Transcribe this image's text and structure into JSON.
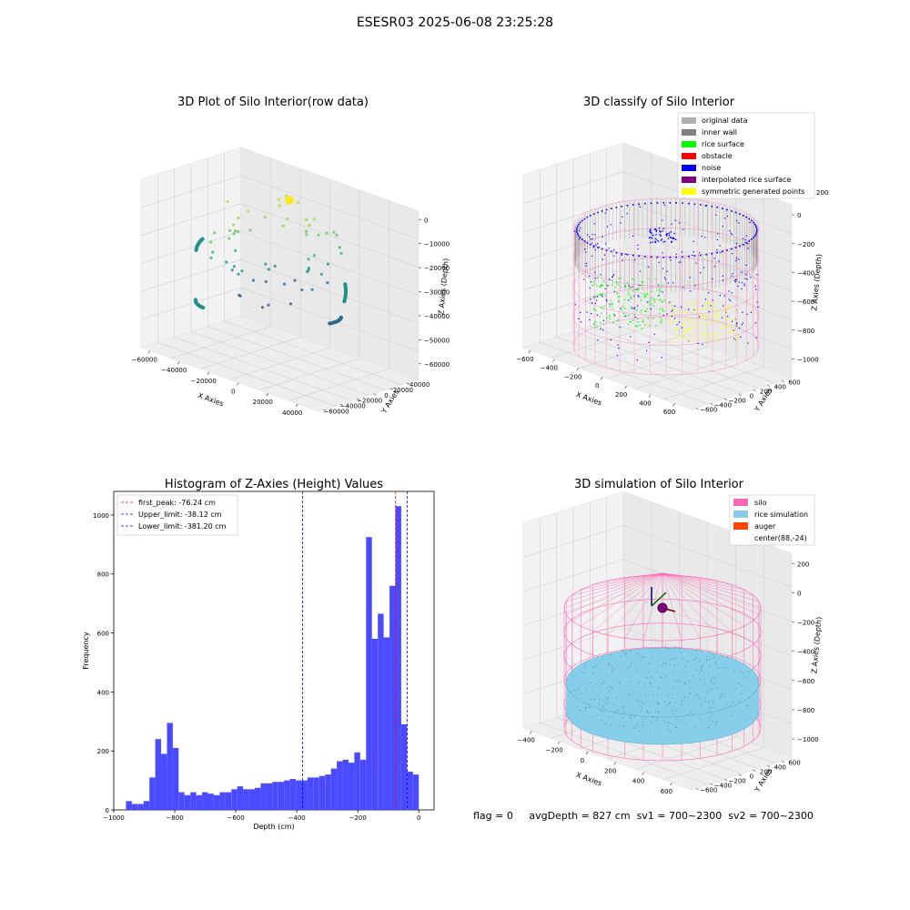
{
  "figure": {
    "title": "ESESR03 2025-06-08 23:25:28",
    "footer": {
      "flag": "flag = 0",
      "avg_depth": "avgDepth = 827 cm",
      "sv1": "sv1 = 700~2300",
      "sv2": "sv2 = 700~2300"
    }
  },
  "colors": {
    "original": "#b0b0b0",
    "inner_wall": "#808080",
    "rice_surface": "#00ff00",
    "obstacle": "#ff0000",
    "noise": "#0000ff",
    "interpolated": "#800080",
    "symmetric": "#ffff00",
    "silo": "#ff69b4",
    "rice_sim": "#87ceeb",
    "auger": "#ff4500",
    "hist_bar": "#4a4aff"
  },
  "chart_data": [
    {
      "type": "scatter",
      "title": "3D Plot of Silo Interior(row data)",
      "xlabel": "X Axies",
      "ylabel": "Y Axies",
      "zlabel": "Z Axies (Depth)",
      "x_ticks": [
        "−60000",
        "−40000",
        "−20000",
        "0",
        "20000",
        "40000"
      ],
      "y_ticks": [
        "−60000",
        "−40000",
        "−20000",
        "0",
        "20000",
        "40000"
      ],
      "z_ticks": [
        "0",
        "−10000",
        "−20000",
        "−30000",
        "−40000",
        "−50000",
        "−60000"
      ]
    },
    {
      "type": "scatter",
      "title": "3D classify of Silo Interior",
      "xlabel": "X Axies",
      "ylabel": "Y Axies",
      "zlabel": "Z Axies (Depth)",
      "x_ticks": [
        "−600",
        "−400",
        "−200",
        "0",
        "200",
        "400",
        "600"
      ],
      "y_ticks": [
        "−600",
        "−400",
        "−200",
        "0",
        "200",
        "400",
        "600"
      ],
      "z_ticks": [
        "0",
        "−200",
        "−400",
        "−600",
        "−800",
        "−1000"
      ],
      "legend": [
        "original data",
        "inner wall",
        "rice surface",
        "obstacle",
        "noise",
        "interpolated rice surface",
        "symmetric generated points"
      ],
      "legend_extra_tick": "200",
      "legend_position": "upper right"
    },
    {
      "type": "bar",
      "title": "Histogram of Z-Axies (Height) Values",
      "xlabel": "Depth (cm)",
      "ylabel": "Frequency",
      "xlim": [
        -1000,
        50
      ],
      "ylim": [
        0,
        1080
      ],
      "x_ticks": [
        "−1000",
        "−800",
        "−600",
        "−400",
        "−200",
        "0"
      ],
      "y_ticks": [
        "0",
        "200",
        "400",
        "600",
        "800",
        "1000"
      ],
      "bin_start": -960,
      "bin_width": 19.2,
      "values": [
        30,
        20,
        20,
        30,
        110,
        240,
        190,
        295,
        210,
        60,
        50,
        60,
        50,
        60,
        55,
        50,
        60,
        60,
        70,
        80,
        70,
        70,
        75,
        90,
        90,
        95,
        95,
        100,
        105,
        100,
        100,
        110,
        110,
        115,
        120,
        140,
        165,
        170,
        160,
        195,
        170,
        925,
        580,
        665,
        585,
        760,
        1030,
        290,
        130,
        120
      ],
      "lines": [
        {
          "label": "first_peak: -76.24 cm",
          "value": -76.24,
          "color": "#ff0000"
        },
        {
          "label": "Upper_limit: -38.12 cm",
          "value": -38.12,
          "color": "#0000ff"
        },
        {
          "label": "Lower_limit: -381.20 cm",
          "value": -381.2,
          "color": "#0000ff"
        }
      ],
      "legend_position": "upper left"
    },
    {
      "type": "scatter",
      "title": "3D simulation of Silo Interior",
      "xlabel": "X Axies",
      "ylabel": "Y Axies",
      "zlabel": "Z Axies (Depth)",
      "x_ticks": [
        "−400",
        "−200",
        "0",
        "200",
        "400",
        "600"
      ],
      "y_ticks": [
        "−600",
        "−400",
        "−200",
        "0",
        "200",
        "400",
        "600"
      ],
      "z_ticks": [
        "200",
        "0",
        "−200",
        "−400",
        "−600",
        "−800",
        "−1000"
      ],
      "legend": [
        "silo",
        "rice simulation",
        "auger",
        "center(88,-24)"
      ],
      "legend_position": "upper right"
    }
  ]
}
